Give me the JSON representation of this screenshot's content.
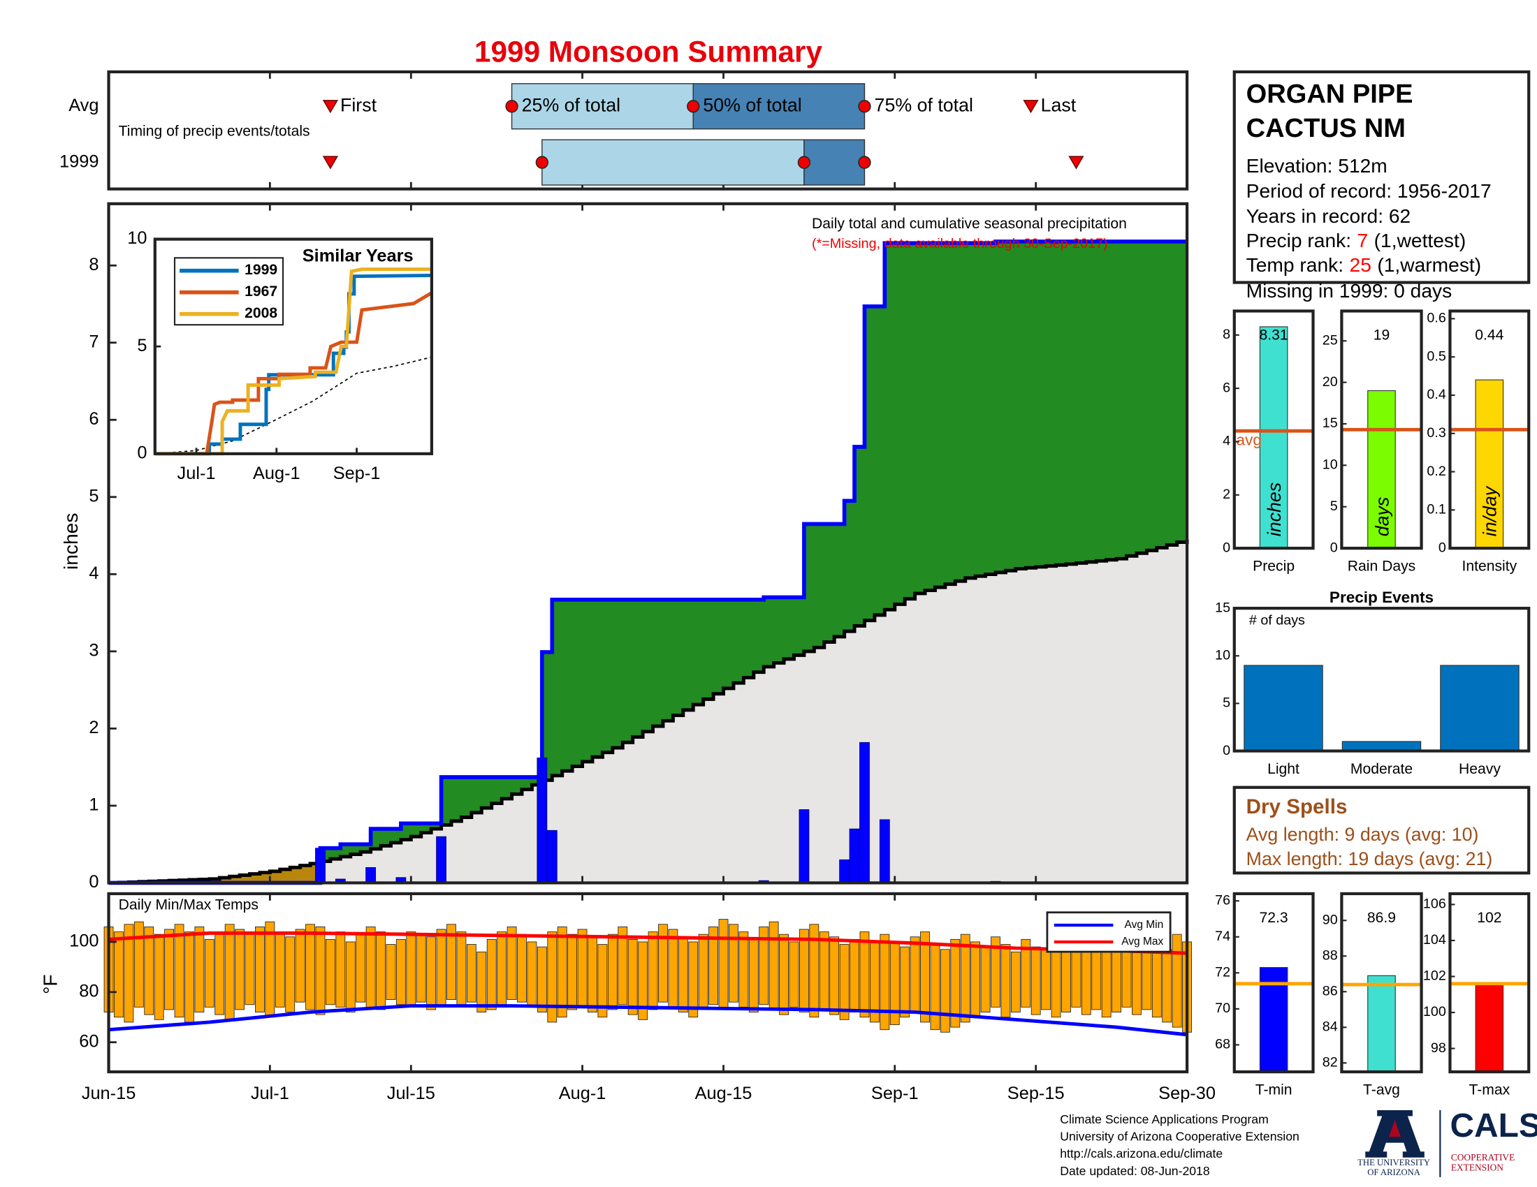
{
  "title": "1999 Monsoon Summary",
  "chart_data": [
    {
      "type": "timing",
      "note": "Timing of precip events/totals",
      "rows": [
        {
          "label": "Avg",
          "first": 22,
          "p25": 40,
          "p50": 58,
          "p75": 75,
          "last": 91.5
        },
        {
          "label": "1999",
          "first": 22,
          "p25": 43,
          "p50": 69,
          "p75": 75,
          "last": 96
        }
      ],
      "marker_labels": {
        "first": "First",
        "p25": "25% of total",
        "p50": "50% of total",
        "p75": "75% of total",
        "last": "Last"
      }
    },
    {
      "type": "precip",
      "title": "Daily total and cumulative seasonal precipitation",
      "note": "(*=Missing, data available through 30-Sep-2017)",
      "ylabel": "inches",
      "ylim": [
        0,
        8.8
      ],
      "yticks": [
        0,
        1,
        2,
        3,
        4,
        5,
        6,
        7,
        8
      ],
      "x": [
        21,
        23,
        26,
        29,
        33,
        43,
        44,
        65,
        69,
        73,
        74,
        75,
        77,
        88
      ],
      "values": [
        0.45,
        0.05,
        0.2,
        0.07,
        0.6,
        1.62,
        0.68,
        0.03,
        0.95,
        0.3,
        0.7,
        1.82,
        0.82,
        0.02
      ],
      "color": "#0000ff",
      "above_color": "#228b22",
      "below_color": "#b8860b",
      "avg_color": "#000000",
      "base_color": "#e8e6e4",
      "avg": {
        "x": [
          0,
          10,
          16,
          20,
          25,
          30,
          35,
          40,
          45,
          50,
          55,
          60,
          65,
          70,
          75,
          80,
          85,
          90,
          95,
          100,
          107
        ],
        "values": [
          0,
          0.05,
          0.15,
          0.25,
          0.4,
          0.6,
          0.85,
          1.15,
          1.45,
          1.75,
          2.1,
          2.45,
          2.8,
          3.05,
          3.4,
          3.75,
          3.95,
          4.07,
          4.13,
          4.2,
          4.45
        ]
      }
    },
    {
      "type": "line",
      "title": "Similar Years",
      "xlim": [
        0,
        107
      ],
      "ylim": [
        0,
        10
      ],
      "yticks": [
        0,
        5,
        10
      ],
      "xticks": [
        {
          "value": 16,
          "label": "Jul-1"
        },
        {
          "value": 47,
          "label": "Aug-1"
        },
        {
          "value": 78,
          "label": "Sep-1"
        }
      ],
      "series": [
        {
          "name": "1999",
          "color": "#0072bd",
          "x": [
            0,
            21,
            21,
            26,
            26,
            33,
            33,
            43,
            43,
            44,
            44,
            69,
            69,
            73,
            73,
            74,
            74,
            75,
            75,
            77,
            77,
            107
          ],
          "values": [
            0,
            0,
            0.45,
            0.45,
            0.68,
            0.68,
            1.37,
            1.37,
            3.0,
            3.0,
            3.68,
            3.68,
            4.68,
            4.68,
            4.97,
            4.97,
            5.68,
            5.68,
            7.45,
            7.45,
            8.27,
            8.31
          ]
        },
        {
          "name": "1967",
          "color": "#d95319",
          "x": [
            0,
            20,
            22,
            23,
            25,
            30,
            30,
            40,
            40,
            48,
            48,
            60,
            60,
            66,
            68,
            72,
            78,
            80,
            80,
            100,
            107
          ],
          "values": [
            0,
            0,
            1.5,
            2.3,
            2.4,
            2.4,
            2.5,
            2.5,
            3.5,
            3.5,
            3.7,
            3.7,
            4.0,
            4.0,
            5.0,
            5.2,
            5.2,
            6.7,
            6.7,
            7.0,
            7.5
          ]
        },
        {
          "name": "2008",
          "color": "#edb120",
          "x": [
            0,
            26,
            26,
            28,
            36,
            36,
            48,
            48,
            62,
            62,
            70,
            72,
            74,
            76,
            80,
            107
          ],
          "values": [
            0,
            0,
            1.5,
            2.0,
            2.0,
            3.2,
            3.2,
            3.5,
            3.6,
            3.8,
            3.8,
            5.0,
            5.0,
            8.5,
            8.6,
            8.6
          ]
        }
      ],
      "avg": {
        "x": [
          0,
          16,
          30,
          47,
          61,
          78,
          92,
          107
        ],
        "values": [
          0,
          0.15,
          0.6,
          1.6,
          2.45,
          3.75,
          4.07,
          4.5
        ]
      }
    },
    {
      "type": "bar",
      "categories": [
        "Precip"
      ],
      "values": [
        8.31
      ],
      "avg": 4.4,
      "avg_label": "avg",
      "unit": "inches",
      "color": "#40e0d0",
      "avg_color": "#d95319",
      "ylim": [
        0,
        8.9
      ],
      "yticks": [
        0,
        2,
        4,
        6,
        8
      ]
    },
    {
      "type": "bar",
      "categories": [
        "Rain Days"
      ],
      "values": [
        19
      ],
      "avg": 14.3,
      "unit": "days",
      "color": "#7cfc00",
      "avg_color": "#d95319",
      "ylim": [
        0,
        28.6
      ],
      "yticks": [
        0,
        5,
        10,
        15,
        20,
        25
      ]
    },
    {
      "type": "bar",
      "categories": [
        "Intensity"
      ],
      "values": [
        0.44
      ],
      "avg": 0.31,
      "unit": "in/day",
      "color": "#ffd700",
      "avg_color": "#d95319",
      "ylim": [
        0,
        0.62
      ],
      "yticks": [
        0,
        0.1,
        0.2,
        0.3,
        0.4,
        0.5,
        0.6
      ]
    },
    {
      "type": "bar",
      "title": "Precip Events",
      "ylabel": "# of days",
      "categories": [
        "Light",
        "Moderate",
        "Heavy"
      ],
      "values": [
        9,
        1,
        9
      ],
      "color": "#0072bd",
      "ylim": [
        0,
        15
      ],
      "yticks": [
        0,
        5,
        10,
        15
      ]
    },
    {
      "type": "range-bar",
      "title": "Daily Min/Max Temps",
      "ylabel": "°F",
      "ylim": [
        48.2,
        119.2
      ],
      "yticks": [
        60,
        80,
        100
      ],
      "color": "#ffa500",
      "xlim": [
        0,
        107
      ],
      "xticks": [
        {
          "value": 0,
          "label": "Jun-15"
        },
        {
          "value": 16,
          "label": "Jul-1"
        },
        {
          "value": 30,
          "label": "Jul-15"
        },
        {
          "value": 47,
          "label": "Aug-1"
        },
        {
          "value": 61,
          "label": "Aug-15"
        },
        {
          "value": 78,
          "label": "Sep-1"
        },
        {
          "value": 92,
          "label": "Sep-15"
        },
        {
          "value": 107,
          "label": "Sep-30"
        }
      ],
      "max": [
        106,
        104,
        107,
        108,
        106,
        103,
        105,
        107,
        104,
        106,
        101,
        103,
        107,
        105,
        103,
        106,
        108,
        104,
        102,
        105,
        107,
        106,
        101,
        104,
        100,
        103,
        106,
        104,
        99,
        101,
        104,
        103,
        102,
        105,
        107,
        104,
        99,
        96,
        101,
        104,
        106,
        103,
        100,
        98,
        104,
        106,
        103,
        105,
        102,
        99,
        103,
        106,
        101,
        100,
        104,
        107,
        105,
        102,
        100,
        103,
        106,
        109,
        107,
        104,
        101,
        106,
        108,
        103,
        100,
        105,
        107,
        104,
        102,
        99,
        101,
        104,
        100,
        103,
        100,
        98,
        102,
        104,
        99,
        97,
        101,
        103,
        100,
        98,
        102,
        99,
        96,
        101,
        98,
        97,
        100,
        102,
        99,
        101,
        98,
        96,
        104,
        106,
        103,
        101,
        99,
        97,
        103,
        100
      ],
      "min": [
        72,
        70,
        68,
        74,
        71,
        69,
        73,
        70,
        68,
        72,
        74,
        71,
        69,
        73,
        75,
        72,
        70,
        74,
        72,
        76,
        73,
        71,
        75,
        74,
        72,
        76,
        74,
        73,
        77,
        75,
        74,
        76,
        73,
        75,
        77,
        74,
        76,
        72,
        73,
        75,
        77,
        76,
        74,
        72,
        68,
        70,
        73,
        74,
        72,
        70,
        73,
        75,
        71,
        69,
        73,
        76,
        74,
        72,
        70,
        74,
        75,
        73,
        76,
        74,
        72,
        75,
        73,
        71,
        74,
        72,
        70,
        73,
        71,
        69,
        72,
        70,
        68,
        65,
        67,
        70,
        72,
        68,
        65,
        64,
        66,
        68,
        70,
        72,
        74,
        70,
        72,
        74,
        71,
        73,
        70,
        72,
        74,
        71,
        73,
        70,
        72,
        74,
        71,
        73,
        70,
        68,
        66,
        64
      ],
      "series": [
        {
          "name": "Avg Min",
          "color": "#0000ff",
          "x": [
            0,
            10,
            20,
            30,
            40,
            50,
            60,
            70,
            80,
            90,
            100,
            107
          ],
          "values": [
            65,
            68,
            72,
            74.5,
            74.5,
            74,
            73.5,
            73,
            72,
            69,
            66,
            63
          ]
        },
        {
          "name": "Avg Max",
          "color": "#ff0000",
          "x": [
            0,
            10,
            20,
            30,
            40,
            50,
            60,
            70,
            80,
            90,
            100,
            107
          ],
          "values": [
            101,
            103.5,
            103.5,
            103,
            102.5,
            102,
            101.5,
            101,
            99.5,
            97.5,
            96.5,
            95.5
          ]
        }
      ]
    },
    {
      "type": "bar",
      "categories": [
        "T-min"
      ],
      "values": [
        72.3
      ],
      "avg": 71.4,
      "color": "#0000ff",
      "avg_color": "#ffa500",
      "ylim": [
        66.5,
        76.4
      ],
      "yticks": [
        68,
        70,
        72,
        74,
        76
      ]
    },
    {
      "type": "bar",
      "categories": [
        "T-avg"
      ],
      "values": [
        86.9
      ],
      "avg": 86.4,
      "color": "#40e0d0",
      "avg_color": "#ffa500",
      "ylim": [
        81.5,
        91.5
      ],
      "yticks": [
        82,
        84,
        86,
        88,
        90
      ]
    },
    {
      "type": "bar",
      "categories": [
        "T-max"
      ],
      "values": [
        101.5
      ],
      "value_labels": [
        "102"
      ],
      "avg": 101.6,
      "color": "#ff0000",
      "avg_color": "#ffa500",
      "ylim": [
        96.7,
        106.6
      ],
      "yticks": [
        98,
        100,
        102,
        104,
        106
      ]
    }
  ],
  "info": {
    "title": [
      "ORGAN PIPE",
      "CACTUS NM"
    ],
    "lines": [
      "Elevation: 512m",
      "Period of record: 1956-2017",
      "Years in record: 62"
    ],
    "precip_rank": {
      "label": "Precip rank:",
      "rank": "7",
      "note": "(1,wettest)"
    },
    "temp_rank": {
      "label": "Temp rank:",
      "rank": "25",
      "note": "(1,warmest)"
    },
    "missing": "Missing in 1999: 0 days",
    "rank_color": "#ff0000"
  },
  "dry_spells": {
    "title": "Dry Spells",
    "lines": [
      "Avg length: 9 days (avg: 10)",
      "Max length: 19 days (avg: 21)"
    ],
    "color": "#9c4f1a"
  },
  "footer": {
    "lines": [
      "Climate Science Applications Program",
      "University of Arizona Cooperative Extension",
      "http://cals.arizona.edu/climate",
      "Date updated: 08-Jun-2018"
    ],
    "university": [
      "THE UNIVERSITY",
      "OF ARIZONA"
    ],
    "cals": "CALS",
    "extension": [
      "COOPERATIVE",
      "EXTENSION"
    ]
  }
}
